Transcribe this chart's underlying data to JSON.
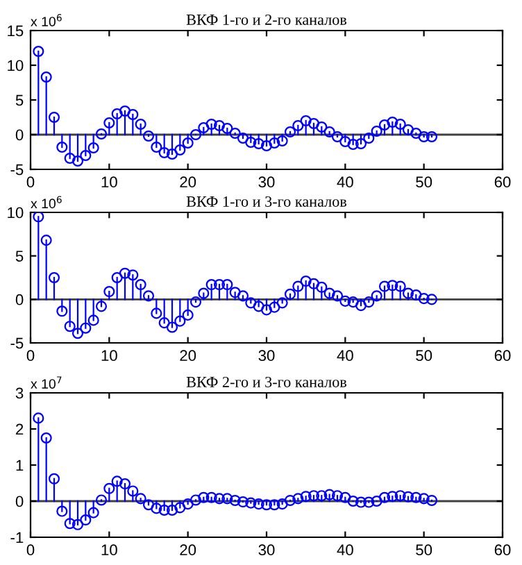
{
  "chart_data": [
    {
      "type": "lollipop",
      "title": "ВКФ 1-го и 2-го каналов",
      "annotations": [
        "x 10$^{6}$"
      ],
      "x": [
        1,
        2,
        3,
        4,
        5,
        6,
        7,
        8,
        9,
        10,
        11,
        12,
        13,
        14,
        15,
        16,
        17,
        18,
        19,
        20,
        21,
        22,
        23,
        24,
        25,
        26,
        27,
        28,
        29,
        30,
        31,
        32,
        33,
        34,
        35,
        36,
        37,
        38,
        39,
        40,
        41,
        42,
        43,
        44,
        45,
        46,
        47,
        48,
        49,
        50,
        51
      ],
      "series": [
        {
          "color": "#0000ff",
          "values": [
            12,
            8.3,
            2.5,
            -1.8,
            -3.4,
            -3.8,
            -3,
            -1.9,
            0.1,
            1.7,
            3,
            3.4,
            2.9,
            1.5,
            -0.2,
            -1.8,
            -2.6,
            -2.8,
            -2.2,
            -1.2,
            0,
            1,
            1.5,
            1.3,
            0.9,
            0.2,
            -0.5,
            -1.1,
            -1.3,
            -1.6,
            -1.2,
            -0.9,
            0.4,
            1.3,
            2,
            1.6,
            1.1,
            0.4,
            -0.3,
            -1,
            -1.4,
            -1.3,
            -0.5,
            0.5,
            1.4,
            1.8,
            1.5,
            0.7,
            0.2,
            -0.3,
            -0.3
          ]
        }
      ],
      "xlim": [
        0,
        60
      ],
      "xticks": [
        0,
        10,
        20,
        30,
        40,
        50,
        60
      ],
      "ylim": [
        -5,
        15
      ],
      "yticks": [
        -5,
        0,
        5,
        10,
        15
      ],
      "marker": "circle",
      "ref_lines": [
        {
          "axis": "y",
          "value": 0,
          "color": "#404040"
        }
      ]
    },
    {
      "type": "lollipop",
      "title": "ВКФ 1-го и 3-го каналов",
      "annotations": [
        "x 10$^{6}$"
      ],
      "x": [
        1,
        2,
        3,
        4,
        5,
        6,
        7,
        8,
        9,
        10,
        11,
        12,
        13,
        14,
        15,
        16,
        17,
        18,
        19,
        20,
        21,
        22,
        23,
        24,
        25,
        26,
        27,
        28,
        29,
        30,
        31,
        32,
        33,
        34,
        35,
        36,
        37,
        38,
        39,
        40,
        41,
        42,
        43,
        44,
        45,
        46,
        47,
        48,
        49,
        50,
        51
      ],
      "series": [
        {
          "color": "#0000ff",
          "values": [
            9.5,
            6.8,
            2.5,
            -1.35,
            -3.1,
            -3.9,
            -3.3,
            -2.4,
            -0.8,
            0.9,
            2.5,
            3,
            2.8,
            1.7,
            0.4,
            -1.6,
            -2.7,
            -3.2,
            -2.5,
            -1.8,
            -0.3,
            0.7,
            1.7,
            1.7,
            1.7,
            0.8,
            0.4,
            -0.4,
            -0.8,
            -1.2,
            -0.9,
            -0.4,
            0.6,
            1.5,
            2.1,
            1.8,
            1.4,
            0.7,
            0.4,
            -0.2,
            -0.3,
            -0.7,
            -0.3,
            0.4,
            1.5,
            1.6,
            1.5,
            0.7,
            0.5,
            0.1,
            0
          ]
        }
      ],
      "xlim": [
        0,
        60
      ],
      "xticks": [
        0,
        10,
        20,
        30,
        40,
        50,
        60
      ],
      "ylim": [
        -5,
        10
      ],
      "yticks": [
        -5,
        0,
        5,
        10
      ],
      "marker": "circle",
      "ref_lines": [
        {
          "axis": "y",
          "value": 0,
          "color": "#404040"
        }
      ]
    },
    {
      "type": "lollipop",
      "title": "ВКФ 2-го и 3-го каналов",
      "annotations": [
        "x 10$^{7}$"
      ],
      "x": [
        1,
        2,
        3,
        4,
        5,
        6,
        7,
        8,
        9,
        10,
        11,
        12,
        13,
        14,
        15,
        16,
        17,
        18,
        19,
        20,
        21,
        22,
        23,
        24,
        25,
        26,
        27,
        28,
        29,
        30,
        31,
        32,
        33,
        34,
        35,
        36,
        37,
        38,
        39,
        40,
        41,
        42,
        43,
        44,
        45,
        46,
        47,
        48,
        49,
        50,
        51
      ],
      "series": [
        {
          "color": "#0000ff",
          "values": [
            2.3,
            1.75,
            0.62,
            -0.28,
            -0.62,
            -0.65,
            -0.52,
            -0.32,
            0.03,
            0.35,
            0.55,
            0.48,
            0.28,
            0.07,
            -0.1,
            -0.2,
            -0.25,
            -0.25,
            -0.18,
            -0.08,
            0.03,
            0.1,
            0.1,
            0.07,
            0.07,
            0.02,
            -0.02,
            -0.05,
            -0.08,
            -0.1,
            -0.1,
            -0.08,
            0.02,
            0.07,
            0.13,
            0.15,
            0.15,
            0.18,
            0.15,
            0.1,
            0,
            -0.03,
            -0.03,
            0,
            0.1,
            0.13,
            0.15,
            0.12,
            0.1,
            0.07,
            0.02
          ]
        }
      ],
      "xlim": [
        0,
        60
      ],
      "xticks": [
        0,
        10,
        20,
        30,
        40,
        50,
        60
      ],
      "ylim": [
        -1,
        3
      ],
      "yticks": [
        -1,
        0,
        1,
        2,
        3
      ],
      "marker": "circle",
      "ref_lines": [
        {
          "axis": "y",
          "value": 0,
          "color": "#404040"
        }
      ]
    }
  ]
}
